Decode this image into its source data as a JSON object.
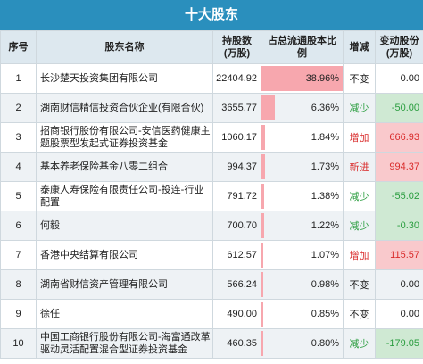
{
  "title": "十大股东",
  "columns": {
    "index": "序号",
    "name": "股东名称",
    "shares": "持股数\n(万股)",
    "ratio": "占总流通股本比例",
    "change": "增减",
    "delta": "变动股份\n(万股)"
  },
  "colors": {
    "header_bg": "#2a8fbd",
    "bar": "#f7a7ae",
    "up": "#d92b2b",
    "down": "#2a9d3f"
  },
  "rows": [
    {
      "index": "1",
      "name": "长沙楚天投资集团有限公司",
      "shares": "22404.92",
      "ratio": "38.96%",
      "ratio_value": 38.96,
      "change": "不变",
      "delta": "0.00",
      "status": "same"
    },
    {
      "index": "2",
      "name": "湖南财信精信投资合伙企业(有限合伙)",
      "shares": "3655.77",
      "ratio": "6.36%",
      "ratio_value": 6.36,
      "change": "减少",
      "delta": "-50.00",
      "status": "down"
    },
    {
      "index": "3",
      "name": "招商银行股份有限公司-安信医药健康主题股票型发起式证券投资基金",
      "shares": "1060.17",
      "ratio": "1.84%",
      "ratio_value": 1.84,
      "change": "增加",
      "delta": "666.93",
      "status": "up"
    },
    {
      "index": "4",
      "name": "基本养老保险基金八零二组合",
      "shares": "994.37",
      "ratio": "1.73%",
      "ratio_value": 1.73,
      "change": "新进",
      "delta": "994.37",
      "status": "new"
    },
    {
      "index": "5",
      "name": "泰康人寿保险有限责任公司-投连-行业配置",
      "shares": "791.72",
      "ratio": "1.38%",
      "ratio_value": 1.38,
      "change": "减少",
      "delta": "-55.02",
      "status": "down"
    },
    {
      "index": "6",
      "name": "何毅",
      "shares": "700.70",
      "ratio": "1.22%",
      "ratio_value": 1.22,
      "change": "减少",
      "delta": "-0.30",
      "status": "down"
    },
    {
      "index": "7",
      "name": "香港中央结算有限公司",
      "shares": "612.57",
      "ratio": "1.07%",
      "ratio_value": 1.07,
      "change": "增加",
      "delta": "115.57",
      "status": "up"
    },
    {
      "index": "8",
      "name": "湖南省财信资产管理有限公司",
      "shares": "566.24",
      "ratio": "0.98%",
      "ratio_value": 0.98,
      "change": "不变",
      "delta": "0.00",
      "status": "same"
    },
    {
      "index": "9",
      "name": "徐任",
      "shares": "490.00",
      "ratio": "0.85%",
      "ratio_value": 0.85,
      "change": "不变",
      "delta": "0.00",
      "status": "same"
    },
    {
      "index": "10",
      "name": "中国工商银行股份有限公司-海富通改革驱动灵活配置混合型证券投资基金",
      "shares": "460.35",
      "ratio": "0.80%",
      "ratio_value": 0.8,
      "change": "减少",
      "delta": "-179.05",
      "status": "down"
    }
  ]
}
